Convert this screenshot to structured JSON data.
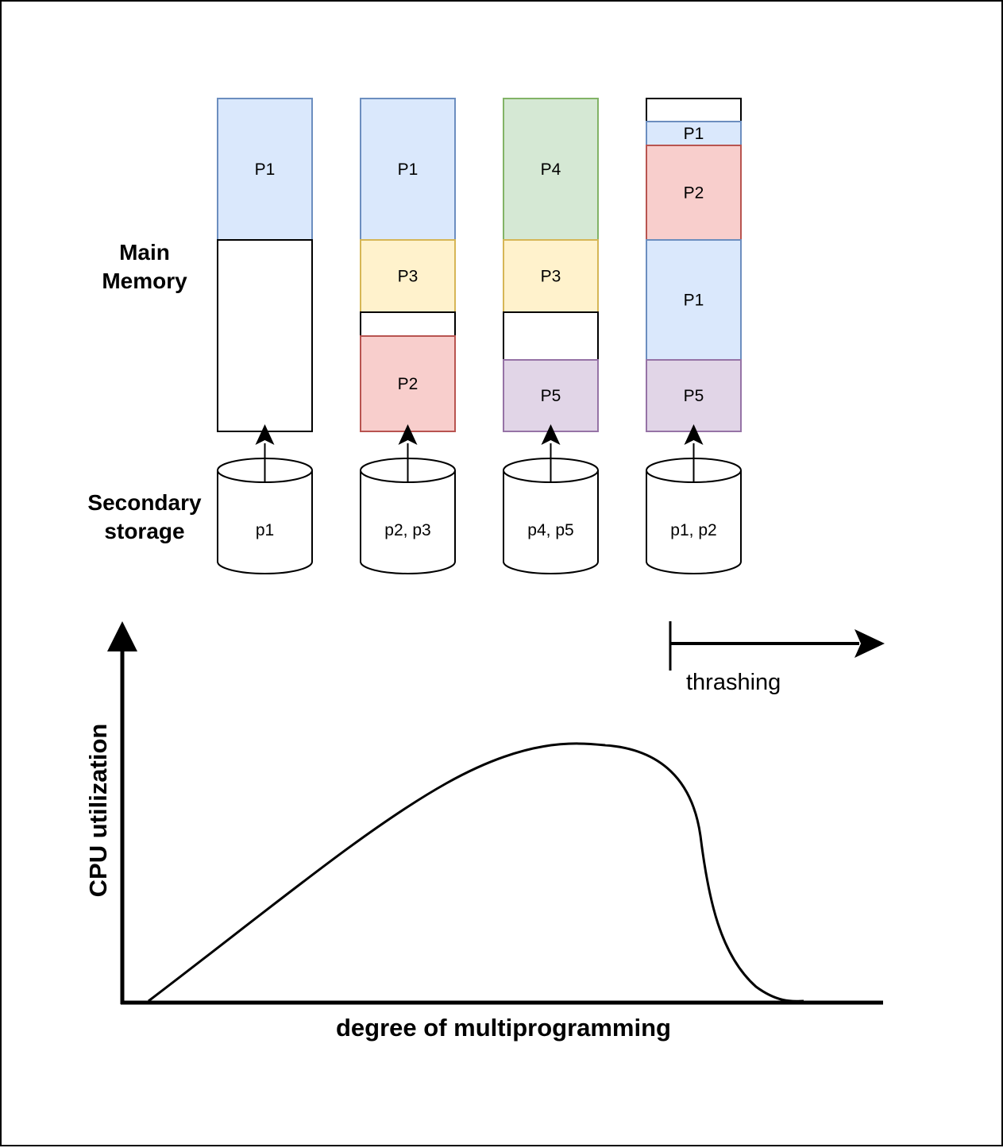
{
  "labels": {
    "main_memory": [
      "Main",
      "Memory"
    ],
    "secondary_storage": [
      "Secondary",
      "storage"
    ]
  },
  "colors": {
    "blue": {
      "fill": "#dae8fc",
      "stroke": "#6c8ebf"
    },
    "yellow": {
      "fill": "#fff2cc",
      "stroke": "#d6b656"
    },
    "red": {
      "fill": "#f8cecc",
      "stroke": "#b85450"
    },
    "green": {
      "fill": "#d5e8d4",
      "stroke": "#82b366"
    },
    "purple": {
      "fill": "#e1d5e7",
      "stroke": "#9673a6"
    },
    "empty": {
      "fill": "#ffffff",
      "stroke": "#000000"
    }
  },
  "columns": [
    {
      "blocks": [
        {
          "label": "P1",
          "color": "blue"
        },
        {
          "label": "",
          "color": "empty"
        }
      ],
      "disk_label": "p1"
    },
    {
      "blocks": [
        {
          "label": "P1",
          "color": "blue"
        },
        {
          "label": "P3",
          "color": "yellow"
        },
        {
          "label": "",
          "color": "empty"
        },
        {
          "label": "P2",
          "color": "red"
        }
      ],
      "disk_label": "p2, p3"
    },
    {
      "blocks": [
        {
          "label": "P4",
          "color": "green"
        },
        {
          "label": "P3",
          "color": "yellow"
        },
        {
          "label": "",
          "color": "empty"
        },
        {
          "label": "P5",
          "color": "purple"
        }
      ],
      "disk_label": "p4, p5"
    },
    {
      "blocks": [
        {
          "label": "",
          "color": "empty"
        },
        {
          "label": "P1",
          "color": "blue"
        },
        {
          "label": "P2",
          "color": "red"
        },
        {
          "label": "P1",
          "color": "blue"
        },
        {
          "label": "P5",
          "color": "purple"
        }
      ],
      "disk_label": "p1, p2"
    }
  ],
  "graph": {
    "thrashing_label": "thrashing",
    "y_axis_label": "CPU utilization",
    "x_axis_label": "degree of multiprogramming"
  }
}
